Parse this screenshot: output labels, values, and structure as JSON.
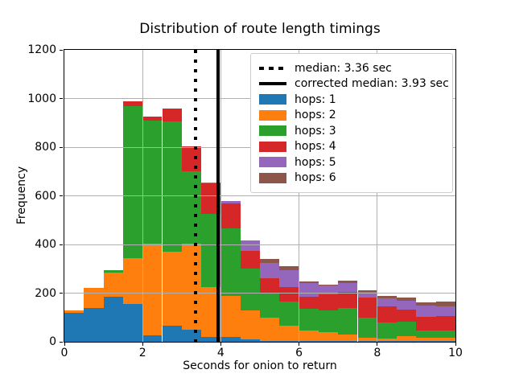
{
  "figure": {
    "title": "Distribution of route length timings",
    "xlabel": "Seconds for onion to return",
    "ylabel": "Frequency"
  },
  "chart_data": {
    "type": "bar",
    "subtype": "stacked-histogram",
    "title": "Distribution of route length timings",
    "xlabel": "Seconds for onion to return",
    "ylabel": "Frequency",
    "xlim": [
      0,
      10
    ],
    "ylim": [
      0,
      1200
    ],
    "xticks": [
      0,
      2,
      4,
      6,
      8,
      10
    ],
    "yticks": [
      0,
      200,
      400,
      600,
      800,
      1000,
      1200
    ],
    "grid": true,
    "legend_position": "upper right",
    "bin_edges": [
      0,
      0.5,
      1,
      1.5,
      2,
      2.5,
      3,
      3.5,
      4,
      4.5,
      5,
      5.5,
      6,
      6.5,
      7,
      7.5,
      8,
      8.5,
      9,
      9.5,
      10
    ],
    "series": [
      {
        "name": "hops: 1",
        "color": "#1f77b4",
        "values": [
          120,
          140,
          185,
          155,
          25,
          65,
          50,
          20,
          20,
          10,
          5,
          5,
          3,
          3,
          3,
          3,
          3,
          3,
          3,
          3
        ]
      },
      {
        "name": "hops: 2",
        "color": "#ff7f0e",
        "values": [
          10,
          80,
          100,
          190,
          380,
          305,
          355,
          205,
          170,
          120,
          95,
          60,
          42,
          37,
          27,
          12,
          9,
          19,
          14,
          12
        ]
      },
      {
        "name": "hops: 3",
        "color": "#2ca02c",
        "values": [
          0,
          0,
          10,
          625,
          505,
          535,
          295,
          300,
          275,
          170,
          100,
          100,
          90,
          90,
          108,
          85,
          68,
          61,
          29,
          30
        ]
      },
      {
        "name": "hops: 4",
        "color": "#d62728",
        "values": [
          0,
          0,
          0,
          20,
          15,
          55,
          105,
          125,
          105,
          75,
          60,
          60,
          50,
          65,
          66,
          82,
          65,
          49,
          55,
          60
        ]
      },
      {
        "name": "hops: 5",
        "color": "#9467bd",
        "values": [
          0,
          0,
          0,
          0,
          0,
          0,
          0,
          5,
          10,
          40,
          65,
          70,
          55,
          35,
          36,
          23,
          35,
          37,
          48,
          40
        ]
      },
      {
        "name": "hops: 6",
        "color": "#8c564b",
        "values": [
          0,
          0,
          0,
          0,
          0,
          0,
          0,
          0,
          0,
          0,
          15,
          15,
          8,
          6,
          10,
          6,
          8,
          14,
          13,
          20
        ]
      }
    ],
    "vlines": [
      {
        "label": "median: 3.36 sec",
        "value": 3.36,
        "style": "dotted",
        "color": "#000000"
      },
      {
        "label": "corrected median: 3.93 sec",
        "value": 3.93,
        "style": "solid",
        "color": "#000000"
      }
    ],
    "colors": {
      "grid": "#b0b0b0",
      "spine": "#000000",
      "legend_border": "#cccccc"
    }
  }
}
